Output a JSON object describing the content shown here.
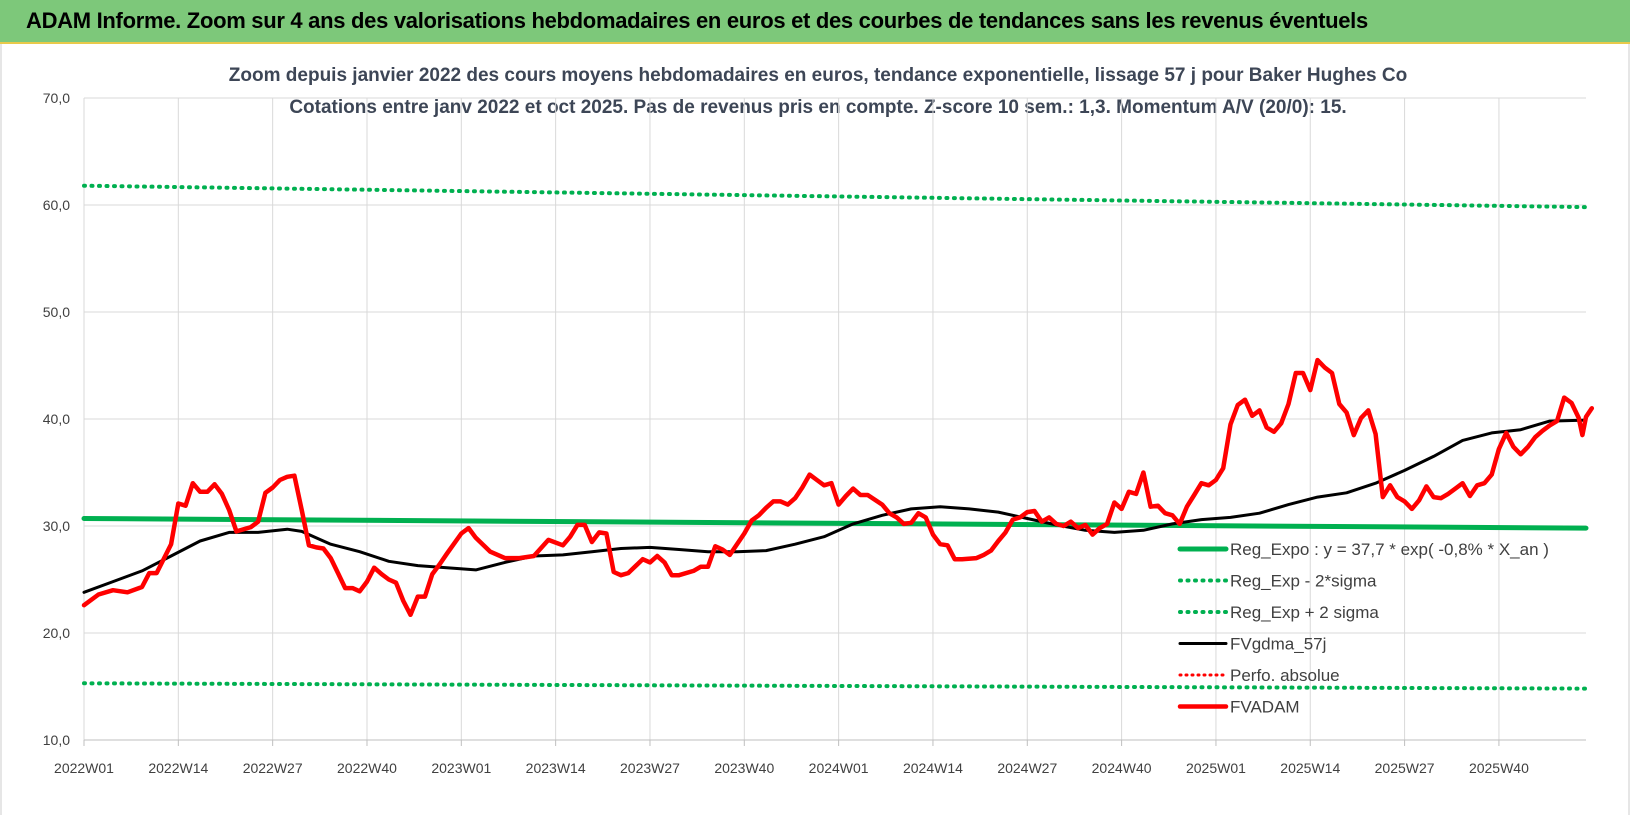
{
  "header": {
    "title": "ADAM Informe. Zoom sur 4 ans des valorisations hebdomadaires en euros et des courbes de tendances sans les revenus éventuels"
  },
  "colors": {
    "header_bg": "#7dc87a",
    "trend": "#00b050",
    "smooth": "#000000",
    "price": "#ff0000",
    "perfo": "#ff0000",
    "grid": "#d9d9d9"
  },
  "chart_data": {
    "type": "line",
    "title": "Zoom depuis janvier 2022 des cours moyens hebdomadaires en euros, tendance exponentielle, lissage 57 j pour Baker Hughes Co",
    "subtitle": "Cotations entre janv 2022 et oct 2025. Pas de revenus pris en compte. Z-score 10 sem.: 1,3. Momentum A/V (20/0): 15.",
    "xlabel": "",
    "ylabel": "",
    "ylim": [
      10,
      70
    ],
    "y_ticks": [
      "10,0",
      "20,0",
      "30,0",
      "40,0",
      "50,0",
      "60,0",
      "70,0"
    ],
    "x_ticks": [
      "2022W01",
      "2022W14",
      "2022W27",
      "2022W40",
      "2023W01",
      "2023W14",
      "2023W27",
      "2023W40",
      "2024W01",
      "2024W14",
      "2024W27",
      "2024W40",
      "2025W01",
      "2025W14",
      "2025W27",
      "2025W40"
    ],
    "grid": true,
    "legend_position": "bottom-right",
    "x_domain_weeks": [
      0,
      207
    ],
    "series": [
      {
        "name": "Reg_Expo : y = 37,7 * exp( -0,8% *  X_an )",
        "style": "solid-thick",
        "points": [
          [
            0,
            30.7
          ],
          [
            207,
            29.8
          ]
        ]
      },
      {
        "name": "Reg_Exp - 2*sigma",
        "style": "dotted",
        "points": [
          [
            0,
            15.3
          ],
          [
            207,
            14.8
          ]
        ]
      },
      {
        "name": "Reg_Exp + 2 sigma",
        "style": "dotted",
        "points": [
          [
            0,
            61.8
          ],
          [
            207,
            59.8
          ]
        ]
      },
      {
        "name": "FVgdma_57j",
        "style": "solid",
        "points": [
          [
            0,
            23.8
          ],
          [
            4,
            24.8
          ],
          [
            8,
            25.8
          ],
          [
            12,
            27.2
          ],
          [
            16,
            28.6
          ],
          [
            20,
            29.4
          ],
          [
            24,
            29.4
          ],
          [
            28,
            29.7
          ],
          [
            30,
            29.5
          ],
          [
            34,
            28.3
          ],
          [
            38,
            27.6
          ],
          [
            42,
            26.7
          ],
          [
            46,
            26.3
          ],
          [
            50,
            26.1
          ],
          [
            54,
            25.9
          ],
          [
            58,
            26.6
          ],
          [
            62,
            27.2
          ],
          [
            66,
            27.3
          ],
          [
            70,
            27.6
          ],
          [
            74,
            27.9
          ],
          [
            78,
            28.0
          ],
          [
            82,
            27.8
          ],
          [
            86,
            27.6
          ],
          [
            90,
            27.6
          ],
          [
            94,
            27.7
          ],
          [
            98,
            28.3
          ],
          [
            102,
            29.0
          ],
          [
            106,
            30.2
          ],
          [
            110,
            31.0
          ],
          [
            114,
            31.6
          ],
          [
            118,
            31.8
          ],
          [
            122,
            31.6
          ],
          [
            126,
            31.3
          ],
          [
            130,
            30.7
          ],
          [
            134,
            30.1
          ],
          [
            138,
            29.6
          ],
          [
            142,
            29.4
          ],
          [
            146,
            29.6
          ],
          [
            150,
            30.2
          ],
          [
            154,
            30.6
          ],
          [
            158,
            30.8
          ],
          [
            162,
            31.2
          ],
          [
            166,
            32.0
          ],
          [
            170,
            32.7
          ],
          [
            174,
            33.1
          ],
          [
            178,
            34.0
          ],
          [
            182,
            35.2
          ],
          [
            186,
            36.5
          ],
          [
            190,
            38.0
          ],
          [
            194,
            38.7
          ],
          [
            198,
            39.0
          ],
          [
            202,
            39.8
          ],
          [
            207,
            39.9
          ]
        ]
      },
      {
        "name": "Perfo. absolue",
        "style": "dotted",
        "points": []
      },
      {
        "name": "FVADAM",
        "style": "solid-thick",
        "points": [
          [
            0,
            22.6
          ],
          [
            2,
            23.6
          ],
          [
            4,
            24.0
          ],
          [
            6,
            23.8
          ],
          [
            8,
            24.3
          ],
          [
            9,
            25.6
          ],
          [
            10,
            25.6
          ],
          [
            12,
            28.3
          ],
          [
            13,
            32.1
          ],
          [
            14,
            31.9
          ],
          [
            15,
            34.0
          ],
          [
            16,
            33.2
          ],
          [
            17,
            33.2
          ],
          [
            18,
            33.9
          ],
          [
            19,
            33.0
          ],
          [
            20,
            31.5
          ],
          [
            21,
            29.5
          ],
          [
            23,
            29.9
          ],
          [
            24,
            30.4
          ],
          [
            25,
            33.1
          ],
          [
            26,
            33.6
          ],
          [
            27,
            34.3
          ],
          [
            28,
            34.6
          ],
          [
            29,
            34.7
          ],
          [
            30,
            31.5
          ],
          [
            31,
            28.2
          ],
          [
            32,
            28.0
          ],
          [
            33,
            27.9
          ],
          [
            34,
            27.0
          ],
          [
            35,
            25.6
          ],
          [
            36,
            24.2
          ],
          [
            37,
            24.2
          ],
          [
            38,
            23.9
          ],
          [
            39,
            24.8
          ],
          [
            40,
            26.1
          ],
          [
            41,
            25.5
          ],
          [
            42,
            25.0
          ],
          [
            43,
            24.7
          ],
          [
            44,
            23.0
          ],
          [
            45,
            21.7
          ],
          [
            46,
            23.4
          ],
          [
            47,
            23.4
          ],
          [
            48,
            25.5
          ],
          [
            49,
            26.4
          ],
          [
            50,
            27.4
          ],
          [
            52,
            29.3
          ],
          [
            53,
            29.8
          ],
          [
            54,
            28.9
          ],
          [
            56,
            27.6
          ],
          [
            58,
            27.0
          ],
          [
            60,
            27.0
          ],
          [
            62,
            27.2
          ],
          [
            64,
            28.7
          ],
          [
            66,
            28.2
          ],
          [
            67,
            29.0
          ],
          [
            68,
            30.1
          ],
          [
            69,
            30.1
          ],
          [
            70,
            28.5
          ],
          [
            71,
            29.4
          ],
          [
            72,
            29.3
          ],
          [
            73,
            25.7
          ],
          [
            74,
            25.4
          ],
          [
            75,
            25.6
          ],
          [
            77,
            26.9
          ],
          [
            78,
            26.6
          ],
          [
            79,
            27.2
          ],
          [
            80,
            26.6
          ],
          [
            81,
            25.4
          ],
          [
            82,
            25.4
          ],
          [
            84,
            25.8
          ],
          [
            85,
            26.2
          ],
          [
            86,
            26.2
          ],
          [
            87,
            28.1
          ],
          [
            88,
            27.8
          ],
          [
            89,
            27.3
          ],
          [
            90,
            28.3
          ],
          [
            91,
            29.3
          ],
          [
            92,
            30.5
          ],
          [
            93,
            31.0
          ],
          [
            94,
            31.7
          ],
          [
            95,
            32.3
          ],
          [
            96,
            32.3
          ],
          [
            97,
            32.0
          ],
          [
            98,
            32.6
          ],
          [
            99,
            33.6
          ],
          [
            100,
            34.8
          ],
          [
            101,
            34.3
          ],
          [
            102,
            33.8
          ],
          [
            103,
            34.0
          ],
          [
            104,
            32.0
          ],
          [
            105,
            32.8
          ],
          [
            106,
            33.5
          ],
          [
            107,
            32.9
          ],
          [
            108,
            32.9
          ],
          [
            110,
            32.0
          ],
          [
            111,
            31.2
          ],
          [
            112,
            30.8
          ],
          [
            113,
            30.2
          ],
          [
            114,
            30.3
          ],
          [
            115,
            31.2
          ],
          [
            116,
            30.8
          ],
          [
            117,
            29.2
          ],
          [
            118,
            28.3
          ],
          [
            119,
            28.2
          ],
          [
            120,
            26.9
          ],
          [
            121,
            26.9
          ],
          [
            123,
            27.0
          ],
          [
            124,
            27.3
          ],
          [
            125,
            27.7
          ],
          [
            126,
            28.6
          ],
          [
            127,
            29.4
          ],
          [
            128,
            30.6
          ],
          [
            129,
            30.8
          ],
          [
            130,
            31.3
          ],
          [
            131,
            31.4
          ],
          [
            132,
            30.4
          ],
          [
            133,
            30.8
          ],
          [
            134,
            30.2
          ],
          [
            135,
            30.0
          ],
          [
            136,
            30.4
          ],
          [
            137,
            29.8
          ],
          [
            138,
            30.1
          ],
          [
            139,
            29.2
          ],
          [
            140,
            29.8
          ],
          [
            141,
            30.2
          ],
          [
            142,
            32.2
          ],
          [
            143,
            31.6
          ],
          [
            144,
            33.2
          ],
          [
            145,
            33.0
          ],
          [
            146,
            35.0
          ],
          [
            147,
            31.8
          ],
          [
            148,
            31.9
          ],
          [
            149,
            31.2
          ],
          [
            150,
            31.0
          ],
          [
            151,
            30.2
          ],
          [
            152,
            31.8
          ],
          [
            153,
            32.9
          ],
          [
            154,
            34.0
          ],
          [
            155,
            33.8
          ],
          [
            156,
            34.3
          ],
          [
            157,
            35.4
          ],
          [
            158,
            39.5
          ],
          [
            159,
            41.3
          ],
          [
            160,
            41.8
          ],
          [
            161,
            40.3
          ],
          [
            162,
            40.8
          ],
          [
            163,
            39.2
          ],
          [
            164,
            38.8
          ],
          [
            165,
            39.6
          ],
          [
            166,
            41.4
          ],
          [
            167,
            44.3
          ],
          [
            168,
            44.3
          ],
          [
            169,
            42.7
          ],
          [
            170,
            45.5
          ],
          [
            171,
            44.8
          ],
          [
            172,
            44.3
          ],
          [
            173,
            41.4
          ],
          [
            174,
            40.6
          ],
          [
            175,
            38.5
          ],
          [
            176,
            40.1
          ],
          [
            177,
            40.8
          ],
          [
            178,
            38.6
          ],
          [
            179,
            32.7
          ],
          [
            180,
            33.8
          ],
          [
            181,
            32.7
          ],
          [
            182,
            32.3
          ],
          [
            183,
            31.6
          ],
          [
            184,
            32.4
          ],
          [
            185,
            33.7
          ],
          [
            186,
            32.7
          ],
          [
            187,
            32.6
          ],
          [
            188,
            33.0
          ],
          [
            189,
            33.5
          ],
          [
            190,
            34.0
          ],
          [
            191,
            32.8
          ],
          [
            192,
            33.8
          ],
          [
            193,
            34.0
          ],
          [
            194,
            34.8
          ],
          [
            195,
            37.2
          ],
          [
            196,
            38.7
          ],
          [
            197,
            37.4
          ],
          [
            198,
            36.7
          ],
          [
            199,
            37.4
          ],
          [
            200,
            38.3
          ],
          [
            201,
            38.9
          ],
          [
            202,
            39.4
          ],
          [
            203,
            39.8
          ],
          [
            204,
            42.0
          ],
          [
            205,
            41.5
          ],
          [
            206,
            40.1
          ],
          [
            206.5,
            38.5
          ],
          [
            207,
            40.2
          ],
          [
            207.8,
            41.0
          ]
        ]
      }
    ]
  }
}
